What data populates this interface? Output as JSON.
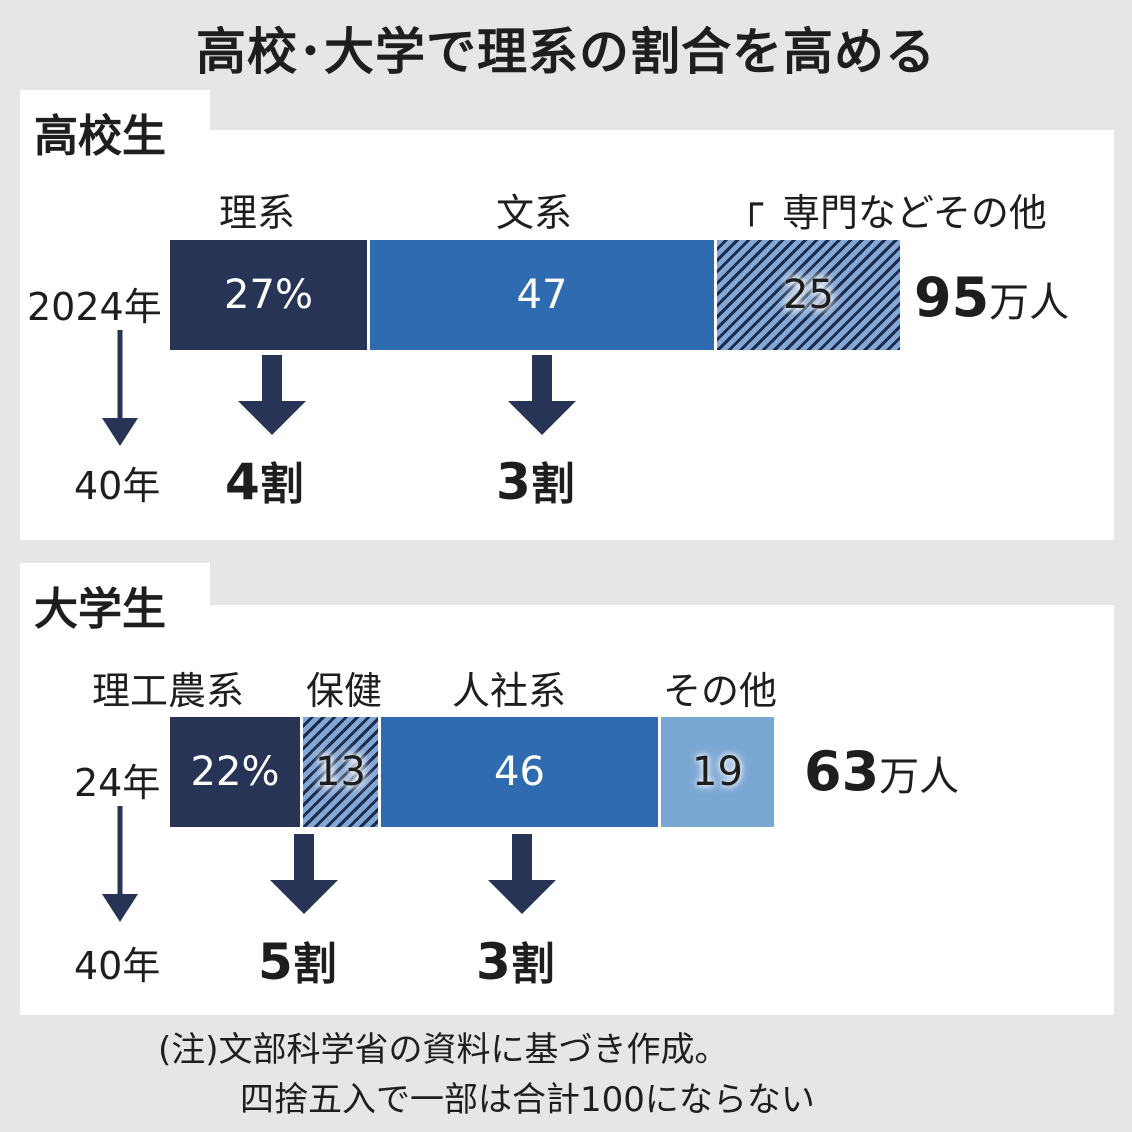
{
  "title": "高校･大学で理系の割合を高める",
  "chart_data": [
    {
      "type": "bar",
      "orientation": "horizontal-stacked",
      "section": "高校生",
      "years": {
        "current": "2024年",
        "target": "40年"
      },
      "categories": [
        "理系",
        "文系",
        "専門などその他"
      ],
      "category_label_prefix": "┌",
      "values": [
        27,
        47,
        25
      ],
      "value_labels": [
        "27%",
        "47",
        "25"
      ],
      "total": {
        "value": "95",
        "unit": "万人"
      },
      "targets": [
        {
          "category": "理系",
          "value": "4",
          "unit": "割"
        },
        {
          "category": "文系",
          "value": "3",
          "unit": "割"
        }
      ],
      "colors": {
        "理系": "#283456",
        "文系": "#2f6bb0",
        "専門などその他": "hatched #82a8d7/#1d2a4a"
      }
    },
    {
      "type": "bar",
      "orientation": "horizontal-stacked",
      "section": "大学生",
      "years": {
        "current": "24年",
        "target": "40年"
      },
      "categories": [
        "理工農系",
        "保健",
        "人社系",
        "その他"
      ],
      "values": [
        22,
        13,
        46,
        19
      ],
      "value_labels": [
        "22%",
        "13",
        "46",
        "19"
      ],
      "total": {
        "value": "63",
        "unit": "万人"
      },
      "targets": [
        {
          "category": "理工農系",
          "value": "5",
          "unit": "割"
        },
        {
          "category": "人社系",
          "value": "3",
          "unit": "割"
        }
      ],
      "colors": {
        "理工農系": "#283456",
        "保健": "hatched #82a8d7/#1d2a4a",
        "人社系": "#2f6bb0",
        "その他": "#7aa6d3"
      }
    }
  ],
  "note": {
    "line1": "(注)文部科学省の資料に基づき作成。",
    "line2": "四捨五入で一部は合計100にならない"
  }
}
